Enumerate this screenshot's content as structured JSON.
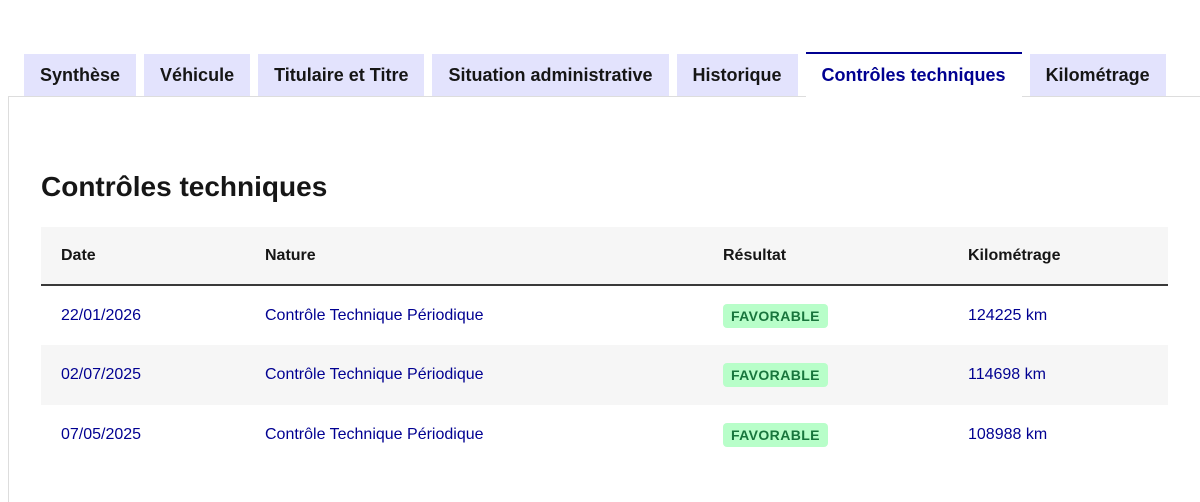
{
  "colors": {
    "accent_blue": "#000091",
    "tab_inactive_bg": "#e3e3fd",
    "text_default": "#161616",
    "panel_border": "#dddddd",
    "table_stripe_bg": "#f6f6f6",
    "table_header_rule": "#3a3a3a",
    "badge_success_bg": "#b8fec9",
    "badge_success_text": "#18753c"
  },
  "tabs": [
    {
      "label": "Synthèse",
      "active": false
    },
    {
      "label": "Véhicule",
      "active": false
    },
    {
      "label": "Titulaire et Titre",
      "active": false
    },
    {
      "label": "Situation administrative",
      "active": false
    },
    {
      "label": "Historique",
      "active": false
    },
    {
      "label": "Contrôles techniques",
      "active": true
    },
    {
      "label": "Kilométrage",
      "active": false
    }
  ],
  "section": {
    "title": "Contrôles techniques"
  },
  "table": {
    "headers": [
      "Date",
      "Nature",
      "Résultat",
      "Kilométrage"
    ],
    "rows": [
      {
        "date": "22/01/2026",
        "nature": "Contrôle Technique Périodique",
        "result": "FAVORABLE",
        "kilometrage": "124225 km"
      },
      {
        "date": "02/07/2025",
        "nature": "Contrôle Technique Périodique",
        "result": "FAVORABLE",
        "kilometrage": "114698 km"
      },
      {
        "date": "07/05/2025",
        "nature": "Contrôle Technique Périodique",
        "result": "FAVORABLE",
        "kilometrage": "108988 km"
      }
    ]
  }
}
